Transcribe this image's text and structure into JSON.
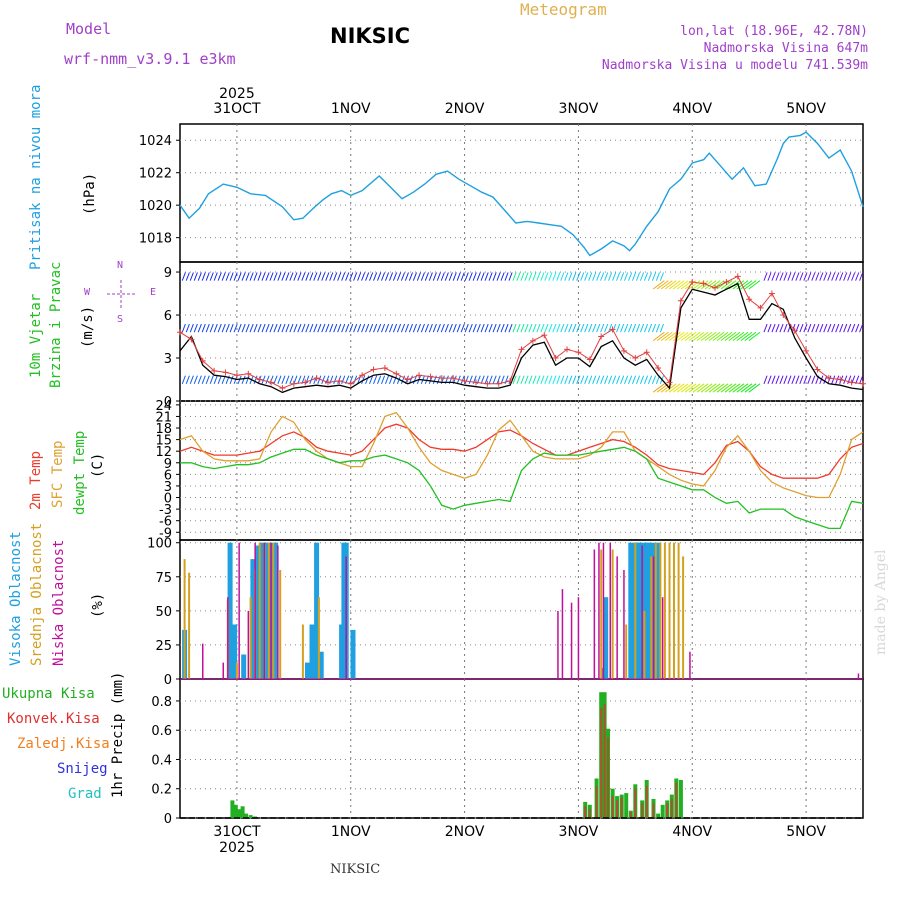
{
  "header": {
    "model_label": "Model",
    "model_name": "wrf-nmm_v3.9.1 e3km",
    "title": "NIKSIC",
    "meteogram": "Meteogram",
    "lonlat": "lon,lat (18.96E, 42.78N)",
    "altitude": "Nadmorska Visina 647m",
    "model_altitude": "Nadmorska Visina u modelu 741.539m"
  },
  "footer": {
    "station": "NIKSIC",
    "credit": "made by Angel"
  },
  "colors": {
    "pressure": "#1fa0e0",
    "temp2m": "#ef3b2c",
    "sfc": "#e0a030",
    "dew": "#22c022",
    "high": "#1fa0e0",
    "mid": "#d4a020",
    "low": "#c0109a",
    "rain": "#22b022",
    "conv": "#e03030",
    "ice": "#f08020",
    "snow": "#3030e0",
    "hail": "#20c0c0"
  },
  "chart_data": [
    {
      "id": "pressure",
      "type": "line",
      "ylabel_title": "Pritisak na nivou mora",
      "ylabel_unit": "(hPa)",
      "x_labels": [
        "31OCT",
        "1NOV",
        "2NOV",
        "3NOV",
        "4NOV",
        "5NOV"
      ],
      "year": "2025",
      "x_range": [
        -0.5,
        5.5
      ],
      "ylim": [
        1016.5,
        1025
      ],
      "yticks": [
        "1018",
        "1020",
        "1022",
        "1024"
      ],
      "x": [
        -0.5,
        -0.42,
        -0.33,
        -0.25,
        -0.12,
        0,
        0.12,
        0.25,
        0.4,
        0.5,
        0.58,
        0.67,
        0.75,
        0.83,
        0.92,
        1,
        1.1,
        1.25,
        1.35,
        1.45,
        1.55,
        1.65,
        1.75,
        1.85,
        1.95,
        2.05,
        2.15,
        2.25,
        2.35,
        2.45,
        2.55,
        2.65,
        2.75,
        2.85,
        2.95,
        3.05,
        3.1,
        3.2,
        3.3,
        3.4,
        3.45,
        3.5,
        3.6,
        3.7,
        3.8,
        3.9,
        4,
        4.1,
        4.15,
        4.25,
        4.35,
        4.45,
        4.55,
        4.65,
        4.75,
        4.8,
        4.85,
        4.95,
        5,
        5.1,
        5.2,
        5.3,
        5.4,
        5.5
      ],
      "values": [
        1020.0,
        1019.2,
        1019.8,
        1020.7,
        1021.3,
        1021.1,
        1020.7,
        1020.6,
        1019.9,
        1019.1,
        1019.2,
        1019.8,
        1020.3,
        1020.7,
        1020.9,
        1020.6,
        1020.9,
        1021.8,
        1021.1,
        1020.4,
        1020.8,
        1021.3,
        1021.9,
        1022.1,
        1021.6,
        1021.2,
        1020.8,
        1020.5,
        1019.7,
        1018.9,
        1019.0,
        1018.9,
        1018.8,
        1018.7,
        1018.2,
        1017.4,
        1016.9,
        1017.3,
        1017.8,
        1017.5,
        1017.2,
        1017.6,
        1018.7,
        1019.6,
        1021.0,
        1021.6,
        1022.6,
        1022.8,
        1023.2,
        1022.4,
        1021.6,
        1022.3,
        1021.2,
        1021.3,
        1022.9,
        1023.8,
        1024.2,
        1024.3,
        1024.5,
        1023.8,
        1022.9,
        1023.4,
        1022.1,
        1019.9
      ]
    },
    {
      "id": "wind",
      "type": "line",
      "ylabel_title": "10m Vjetar",
      "ylabel_sub": "Brzina i Pravac",
      "ylabel_unit": "(m/s)",
      "compass": {
        "n": "N",
        "w": "W",
        "e": "E",
        "s": "S"
      },
      "ylim": [
        0,
        9.7
      ],
      "yticks": [
        "0",
        "3",
        "6",
        "9"
      ],
      "barb_rows": [
        8.4,
        4.8,
        1.2
      ],
      "x": [
        -0.5,
        -0.4,
        -0.3,
        -0.2,
        -0.1,
        0,
        0.1,
        0.2,
        0.3,
        0.4,
        0.5,
        0.6,
        0.7,
        0.8,
        0.9,
        1,
        1.1,
        1.2,
        1.3,
        1.4,
        1.5,
        1.6,
        1.7,
        1.8,
        1.9,
        2,
        2.1,
        2.2,
        2.3,
        2.4,
        2.5,
        2.6,
        2.7,
        2.8,
        2.9,
        3,
        3.1,
        3.2,
        3.3,
        3.4,
        3.5,
        3.6,
        3.7,
        3.8,
        3.9,
        4,
        4.1,
        4.2,
        4.3,
        4.4,
        4.5,
        4.6,
        4.7,
        4.8,
        4.9,
        5,
        5.1,
        5.2,
        5.3,
        5.4,
        5.5
      ],
      "values": [
        3.5,
        4.5,
        2.5,
        1.8,
        1.7,
        1.5,
        1.6,
        1.2,
        1.0,
        0.6,
        0.9,
        1.0,
        1.1,
        1.0,
        1.1,
        0.9,
        1.4,
        1.8,
        1.9,
        1.6,
        1.2,
        1.5,
        1.4,
        1.3,
        1.3,
        1.1,
        1.0,
        0.9,
        0.9,
        1.1,
        3.0,
        3.9,
        4.1,
        2.5,
        3.0,
        3.0,
        2.4,
        3.8,
        4.2,
        3.0,
        2.5,
        2.9,
        1.8,
        0.9,
        6.5,
        7.8,
        7.6,
        7.4,
        7.8,
        8.2,
        5.7,
        5.7,
        6.8,
        6.4,
        4.4,
        3.0,
        1.7,
        1.2,
        1.1,
        0.9,
        0.8
      ],
      "gust": [
        4.8,
        4.3,
        2.8,
        2.1,
        2.0,
        1.8,
        1.9,
        1.5,
        1.3,
        0.9,
        1.2,
        1.3,
        1.6,
        1.3,
        1.4,
        1.2,
        1.8,
        2.2,
        2.3,
        1.9,
        1.5,
        1.8,
        1.7,
        1.6,
        1.6,
        1.4,
        1.3,
        1.2,
        1.2,
        1.4,
        3.6,
        4.2,
        4.6,
        3.0,
        3.6,
        3.4,
        2.9,
        4.5,
        5.0,
        3.5,
        3.0,
        3.4,
        2.3,
        1.3,
        7.0,
        8.3,
        8.2,
        7.9,
        8.3,
        8.7,
        7.1,
        6.5,
        7.5,
        6.0,
        4.9,
        3.5,
        2.2,
        1.6,
        1.5,
        1.3,
        1.2
      ]
    },
    {
      "id": "temperature",
      "type": "line",
      "ylabel_1": "2m Temp",
      "ylabel_2": "SFC Temp",
      "ylabel_3": "dewpt Temp",
      "ylabel_unit": "(C)",
      "ylim": [
        -11,
        25
      ],
      "yticks": [
        "24",
        "21",
        "18",
        "15",
        "12",
        "9",
        "6",
        "3",
        "0",
        "-3",
        "-6",
        "-9"
      ],
      "x": [
        -0.5,
        -0.4,
        -0.3,
        -0.2,
        -0.1,
        0,
        0.1,
        0.2,
        0.3,
        0.4,
        0.5,
        0.6,
        0.7,
        0.8,
        0.9,
        1,
        1.1,
        1.2,
        1.3,
        1.4,
        1.5,
        1.6,
        1.7,
        1.8,
        1.9,
        2,
        2.1,
        2.2,
        2.3,
        2.4,
        2.5,
        2.6,
        2.7,
        2.8,
        2.9,
        3,
        3.1,
        3.2,
        3.3,
        3.4,
        3.5,
        3.6,
        3.7,
        3.8,
        3.9,
        4,
        4.1,
        4.2,
        4.3,
        4.4,
        4.5,
        4.6,
        4.7,
        4.8,
        4.9,
        5,
        5.1,
        5.2,
        5.3,
        5.4,
        5.5
      ],
      "series": [
        {
          "name": "2m Temp",
          "values": [
            12,
            13,
            12,
            11,
            11,
            11,
            11.5,
            12,
            14,
            16,
            17,
            15.5,
            13,
            12,
            11.5,
            11,
            12,
            15,
            18,
            19,
            18,
            15,
            13,
            12.5,
            12.5,
            12,
            13,
            15,
            17,
            17.5,
            16,
            14,
            12.5,
            11,
            11,
            12,
            13,
            14,
            15,
            14.5,
            13,
            11,
            8.5,
            7.5,
            7,
            6.5,
            6,
            9,
            13.5,
            14.5,
            12,
            8,
            6,
            5,
            5,
            5,
            5,
            6,
            10,
            13,
            14
          ]
        },
        {
          "name": "SFC Temp",
          "values": [
            15,
            16,
            12,
            10,
            9.5,
            9.5,
            9.5,
            10,
            17,
            21,
            19.5,
            15,
            12,
            10,
            9,
            8,
            8,
            14,
            21,
            22,
            18,
            13,
            9,
            7,
            6,
            5,
            6,
            11,
            17.5,
            20,
            16,
            12,
            10.5,
            10,
            10,
            10,
            11,
            13,
            17,
            17,
            12,
            10,
            8,
            6,
            4.5,
            3.5,
            3,
            7,
            13,
            16,
            12,
            7,
            4,
            2.5,
            1.5,
            0.5,
            0,
            0,
            6,
            15,
            17
          ]
        },
        {
          "name": "dewpt Temp",
          "values": [
            9,
            9,
            8,
            7.5,
            8,
            8.5,
            8.5,
            9,
            10.5,
            11.5,
            12.5,
            12.5,
            11,
            10,
            9,
            9.5,
            9.5,
            10.5,
            11,
            10,
            9,
            7,
            3,
            -2,
            -3,
            -2,
            -1.5,
            -1,
            -0.5,
            -1,
            7,
            10,
            11.5,
            11,
            11,
            11,
            11.5,
            12,
            12.5,
            13,
            12,
            10,
            5,
            4,
            3,
            2,
            2,
            0,
            -1.5,
            -1,
            -4,
            -3,
            -3,
            -3,
            -5,
            -6,
            -7,
            -8,
            -8,
            -1,
            -1.5
          ]
        }
      ]
    },
    {
      "id": "clouds",
      "type": "bar",
      "ylabel_1": "Visoka Oblacnost",
      "ylabel_2": "Srednja Oblacnost",
      "ylabel_3": "Niska Oblacnost",
      "ylabel_unit": "(%)",
      "ylim": [
        0,
        102
      ],
      "yticks": [
        "0",
        "25",
        "50",
        "75",
        "100"
      ],
      "series": [
        {
          "name": "Visoka Oblacnost",
          "x": [
            -0.46,
            -0.06,
            -0.02,
            0.06,
            0.14,
            0.18,
            0.22,
            0.26,
            0.3,
            0.34,
            0.62,
            0.66,
            0.7,
            0.74,
            0.92,
            0.94,
            0.96,
            1.02,
            3.22,
            3.24,
            3.46,
            3.5,
            3.52,
            3.54,
            3.56,
            3.6,
            3.62,
            3.66,
            3.7
          ],
          "values": [
            36,
            100,
            40,
            18,
            88,
            98,
            100,
            100,
            100,
            100,
            12,
            40,
            100,
            20,
            40,
            100,
            100,
            36,
            8,
            60,
            100,
            100,
            100,
            100,
            100,
            100,
            100,
            100,
            100
          ]
        },
        {
          "name": "Srednja Oblacnost",
          "x": [
            -0.46,
            -0.42,
            -0.08,
            0.0,
            0.12,
            0.16,
            0.2,
            0.24,
            0.28,
            0.32,
            0.38,
            0.58,
            0.72,
            3.2,
            3.3,
            3.42,
            3.5,
            3.58,
            3.64,
            3.68,
            3.72,
            3.76,
            3.8,
            3.84,
            3.88,
            3.92
          ],
          "values": [
            88,
            78,
            58,
            12,
            60,
            80,
            100,
            100,
            100,
            100,
            80,
            40,
            60,
            95,
            95,
            40,
            100,
            50,
            90,
            100,
            100,
            100,
            100,
            100,
            100,
            90
          ]
        },
        {
          "name": "Niska Oblacnost",
          "x": [
            -0.3,
            -0.12,
            -0.08,
            0.02,
            0.1,
            0.16,
            0.24,
            0.3,
            0.36,
            0.96,
            2.82,
            2.86,
            2.94,
            3.0,
            3.14,
            3.18,
            3.22,
            3.28,
            3.34,
            3.4,
            3.56,
            3.66,
            3.74,
            3.98,
            5.46
          ],
          "values": [
            26,
            12,
            60,
            100,
            50,
            100,
            100,
            100,
            98,
            90,
            50,
            66,
            56,
            60,
            95,
            100,
            100,
            100,
            90,
            80,
            98,
            90,
            60,
            20,
            4
          ]
        }
      ]
    },
    {
      "id": "precip",
      "type": "bar",
      "legend": [
        "Ukupna Kisa",
        "Konvek.Kisa",
        "Zaledj.Kisa",
        "Snijeg",
        "Grad"
      ],
      "ylabel_unit": "1hr Precip (mm)",
      "ylim": [
        0,
        0.95
      ],
      "yticks": [
        "0",
        "0.2",
        "0.4",
        "0.6",
        "0.8"
      ],
      "series": [
        {
          "name": "Ukupna Kisa",
          "x": [
            -0.04,
            -0.01,
            0.02,
            0.05,
            0.08,
            0.12,
            0.16,
            3.06,
            3.1,
            3.16,
            3.2,
            3.23,
            3.26,
            3.3,
            3.34,
            3.38,
            3.42,
            3.46,
            3.5,
            3.56,
            3.6,
            3.66,
            3.7,
            3.74,
            3.78,
            3.82,
            3.86,
            3.9
          ],
          "values": [
            0.12,
            0.09,
            0.06,
            0.08,
            0.03,
            0.02,
            0.01,
            0.11,
            0.09,
            0.27,
            0.86,
            0.86,
            0.61,
            0.2,
            0.15,
            0.16,
            0.17,
            0.05,
            0.23,
            0.12,
            0.26,
            0.13,
            0.03,
            0.09,
            0.12,
            0.16,
            0.27,
            0.26
          ]
        },
        {
          "name": "Konvek.Kisa",
          "x": [
            3.06,
            3.1,
            3.16,
            3.2,
            3.23,
            3.26,
            3.3,
            3.34,
            3.38,
            3.46,
            3.5,
            3.56,
            3.6,
            3.66,
            3.78,
            3.82,
            3.86
          ],
          "values": [
            0.08,
            0.06,
            0.22,
            0.75,
            0.78,
            0.55,
            0.15,
            0.12,
            0.14,
            0.04,
            0.2,
            0.1,
            0.22,
            0.1,
            0.1,
            0.13,
            0.24
          ]
        }
      ]
    }
  ]
}
